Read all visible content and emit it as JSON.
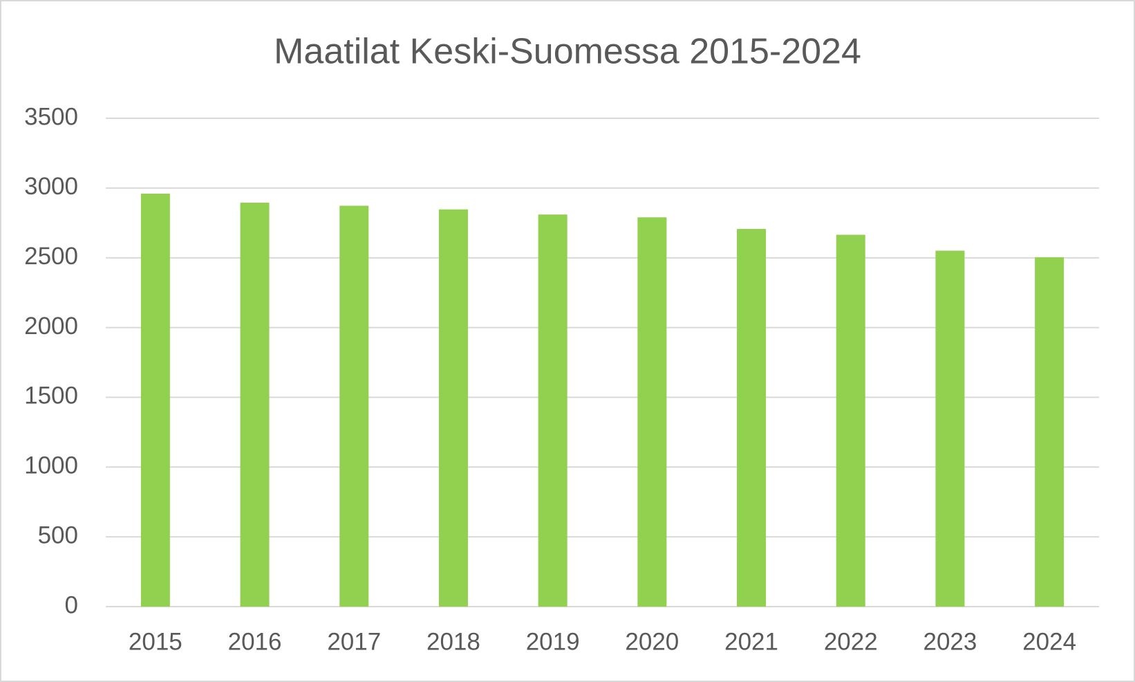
{
  "chart_data": {
    "type": "bar",
    "title": "Maatilat Keski-Suomessa 2015-2024",
    "categories": [
      "2015",
      "2016",
      "2017",
      "2018",
      "2019",
      "2020",
      "2021",
      "2022",
      "2023",
      "2024"
    ],
    "values": [
      2960,
      2895,
      2873,
      2847,
      2810,
      2790,
      2707,
      2665,
      2551,
      2504
    ],
    "color": "#92d050",
    "ylim": [
      0,
      3500
    ],
    "yticks": [
      0,
      500,
      1000,
      1500,
      2000,
      2500,
      3000,
      3500
    ],
    "grid": true
  }
}
